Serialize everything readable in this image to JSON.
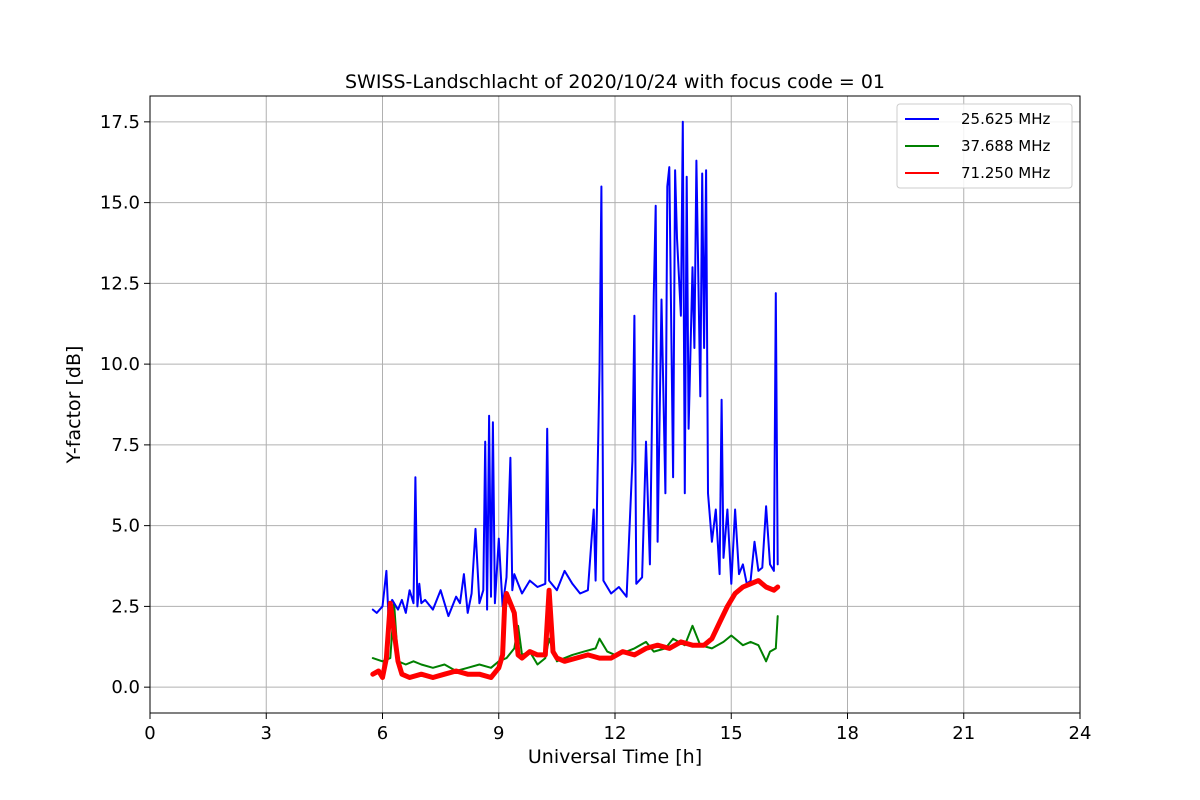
{
  "chart_data": {
    "type": "line",
    "title": "SWISS-Landschlacht of 2020/10/24 with focus code = 01",
    "xlabel": "Universal Time [h]",
    "ylabel": "Y-factor [dB]",
    "xlim": [
      0,
      24
    ],
    "ylim": [
      -0.8,
      18.3
    ],
    "xticks": [
      0,
      3,
      6,
      9,
      12,
      15,
      18,
      21,
      24
    ],
    "xtick_labels": [
      "0",
      "3",
      "6",
      "9",
      "12",
      "15",
      "18",
      "21",
      "24"
    ],
    "yticks": [
      0.0,
      2.5,
      5.0,
      7.5,
      10.0,
      12.5,
      15.0,
      17.5
    ],
    "ytick_labels": [
      "0.0",
      "2.5",
      "5.0",
      "7.5",
      "10.0",
      "12.5",
      "15.0",
      "17.5"
    ],
    "grid": true,
    "legend_position": "top-right",
    "series": [
      {
        "name": "25.625 MHz",
        "color": "#0000ff",
        "x": [
          5.75,
          5.85,
          6.0,
          6.1,
          6.15,
          6.25,
          6.4,
          6.5,
          6.6,
          6.7,
          6.8,
          6.85,
          6.9,
          6.95,
          7.0,
          7.1,
          7.3,
          7.5,
          7.7,
          7.9,
          8.0,
          8.1,
          8.2,
          8.3,
          8.4,
          8.5,
          8.6,
          8.65,
          8.7,
          8.75,
          8.8,
          8.85,
          8.9,
          9.0,
          9.1,
          9.2,
          9.3,
          9.35,
          9.4,
          9.6,
          9.8,
          10.0,
          10.2,
          10.25,
          10.3,
          10.5,
          10.7,
          10.9,
          11.1,
          11.3,
          11.45,
          11.5,
          11.6,
          11.65,
          11.7,
          11.9,
          12.1,
          12.3,
          12.45,
          12.5,
          12.55,
          12.7,
          12.8,
          12.9,
          13.0,
          13.05,
          13.1,
          13.2,
          13.3,
          13.35,
          13.4,
          13.5,
          13.55,
          13.6,
          13.7,
          13.75,
          13.8,
          13.85,
          13.9,
          14.0,
          14.05,
          14.1,
          14.2,
          14.25,
          14.3,
          14.35,
          14.4,
          14.5,
          14.6,
          14.7,
          14.75,
          14.8,
          14.9,
          15.0,
          15.1,
          15.2,
          15.3,
          15.4,
          15.5,
          15.6,
          15.7,
          15.8,
          15.9,
          16.0,
          16.1,
          16.15,
          16.2
        ],
        "values": [
          2.4,
          2.3,
          2.5,
          3.6,
          2.3,
          2.7,
          2.4,
          2.7,
          2.3,
          3.0,
          2.6,
          6.5,
          2.5,
          3.2,
          2.6,
          2.7,
          2.4,
          3.0,
          2.2,
          2.8,
          2.6,
          3.5,
          2.3,
          2.9,
          4.9,
          2.6,
          3.0,
          7.6,
          2.4,
          8.4,
          2.8,
          8.2,
          2.6,
          4.6,
          2.5,
          3.4,
          7.1,
          3.0,
          3.5,
          2.9,
          3.3,
          3.1,
          3.2,
          8.0,
          3.3,
          3.0,
          3.6,
          3.2,
          2.9,
          3.0,
          5.5,
          3.3,
          9.8,
          15.5,
          3.3,
          2.9,
          3.1,
          2.8,
          7.0,
          11.5,
          3.2,
          3.4,
          7.6,
          3.8,
          12.2,
          14.9,
          4.5,
          12.0,
          6.0,
          15.5,
          16.1,
          6.5,
          16.0,
          13.9,
          11.5,
          17.5,
          6.0,
          15.8,
          8.0,
          13.0,
          10.5,
          16.3,
          9.0,
          15.9,
          10.5,
          16.0,
          6.0,
          4.5,
          5.5,
          3.5,
          8.9,
          4.0,
          5.5,
          3.2,
          5.5,
          3.5,
          3.8,
          3.2,
          3.3,
          4.5,
          3.6,
          3.7,
          5.6,
          3.8,
          3.6,
          12.2,
          3.8
        ]
      },
      {
        "name": "37.688 MHz",
        "color": "#008000",
        "x": [
          5.75,
          6.0,
          6.2,
          6.3,
          6.4,
          6.6,
          6.8,
          7.0,
          7.3,
          7.6,
          7.9,
          8.2,
          8.5,
          8.8,
          9.0,
          9.2,
          9.4,
          9.5,
          9.6,
          9.8,
          10.0,
          10.2,
          10.3,
          10.5,
          10.7,
          10.9,
          11.2,
          11.5,
          11.6,
          11.8,
          12.0,
          12.3,
          12.5,
          12.8,
          13.0,
          13.3,
          13.5,
          13.8,
          14.0,
          14.2,
          14.5,
          14.8,
          15.0,
          15.3,
          15.5,
          15.7,
          15.9,
          16.0,
          16.15,
          16.2
        ],
        "values": [
          0.9,
          0.8,
          0.9,
          2.6,
          0.8,
          0.7,
          0.8,
          0.7,
          0.6,
          0.7,
          0.5,
          0.6,
          0.7,
          0.6,
          0.8,
          0.9,
          1.2,
          1.9,
          1.0,
          1.1,
          0.7,
          0.9,
          1.5,
          0.8,
          0.9,
          1.0,
          1.1,
          1.2,
          1.5,
          1.1,
          1.0,
          1.1,
          1.2,
          1.4,
          1.1,
          1.2,
          1.5,
          1.3,
          1.9,
          1.3,
          1.2,
          1.4,
          1.6,
          1.3,
          1.4,
          1.3,
          0.8,
          1.1,
          1.2,
          2.2
        ]
      },
      {
        "name": "71.250 MHz",
        "color": "#ff0000",
        "x": [
          5.75,
          5.9,
          6.0,
          6.1,
          6.2,
          6.4,
          6.5,
          6.7,
          7.0,
          7.3,
          7.6,
          7.9,
          8.2,
          8.5,
          8.8,
          9.0,
          9.1,
          9.15,
          9.2,
          9.3,
          9.4,
          9.5,
          9.6,
          9.8,
          10.0,
          10.2,
          10.3,
          10.4,
          10.5,
          10.7,
          11.0,
          11.3,
          11.6,
          11.9,
          12.2,
          12.5,
          12.8,
          13.1,
          13.4,
          13.7,
          14.0,
          14.3,
          14.5,
          14.7,
          14.9,
          15.1,
          15.3,
          15.5,
          15.7,
          15.9,
          16.1,
          16.2
        ],
        "values": [
          0.4,
          0.5,
          0.3,
          0.9,
          2.6,
          0.8,
          0.4,
          0.3,
          0.4,
          0.3,
          0.4,
          0.5,
          0.4,
          0.4,
          0.3,
          0.6,
          1.0,
          2.5,
          2.9,
          2.6,
          2.3,
          1.0,
          0.9,
          1.1,
          1.0,
          1.0,
          3.0,
          1.1,
          0.9,
          0.8,
          0.9,
          1.0,
          0.9,
          0.9,
          1.1,
          1.0,
          1.2,
          1.3,
          1.2,
          1.4,
          1.3,
          1.3,
          1.5,
          2.0,
          2.5,
          2.9,
          3.1,
          3.2,
          3.3,
          3.1,
          3.0,
          3.1
        ]
      }
    ]
  }
}
